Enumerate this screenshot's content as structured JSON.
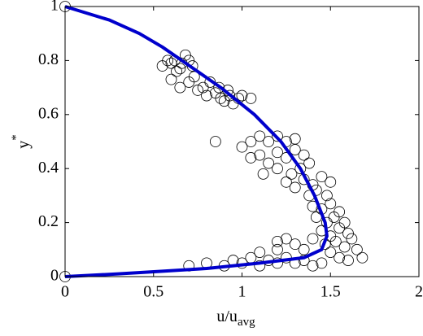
{
  "chart_data": {
    "type": "scatter",
    "xlabel": "u/u",
    "xlabel_sub": "avg",
    "ylabel": "y",
    "ylabel_sup": "*",
    "xlim": [
      0,
      2
    ],
    "xticks": [
      0,
      0.5,
      1,
      1.5,
      2
    ],
    "ylim": [
      0,
      1
    ],
    "yticks": [
      0,
      0.2,
      0.4,
      0.6,
      0.8,
      1
    ],
    "series": [
      {
        "kind": "markers",
        "color": "#000000",
        "x": [
          0,
          0,
          0.55,
          0.58,
          0.6,
          0.62,
          0.65,
          0.68,
          0.7,
          0.63,
          0.72,
          0.66,
          0.6,
          0.65,
          0.7,
          0.75,
          0.78,
          0.8,
          0.85,
          0.88,
          0.9,
          0.93,
          0.95,
          0.98,
          1.0,
          0.82,
          0.73,
          0.87,
          0.92,
          1.05,
          0.85,
          1.0,
          1.05,
          1.1,
          1.15,
          1.2,
          1.25,
          1.3,
          1.1,
          1.15,
          1.2,
          1.25,
          1.3,
          1.35,
          1.2,
          1.28,
          1.33,
          1.38,
          1.25,
          1.3,
          1.35,
          1.4,
          1.45,
          1.38,
          1.42,
          1.48,
          1.05,
          1.12,
          1.5,
          1.4,
          1.45,
          1.5,
          1.55,
          1.42,
          1.48,
          1.52,
          1.58,
          1.45,
          1.5,
          1.55,
          1.6,
          1.4,
          1.47,
          1.53,
          1.58,
          1.62,
          1.65,
          1.5,
          1.35,
          1.3,
          1.25,
          1.2,
          1.55,
          1.68,
          1.6,
          0.7,
          0.8,
          0.9,
          0.95,
          1.0,
          1.05,
          1.1,
          1.15,
          1.2,
          1.25,
          1.3,
          1.35,
          1.4,
          1.45,
          1.1,
          1.2
        ],
        "values": [
          0,
          1,
          0.78,
          0.8,
          0.79,
          0.8,
          0.77,
          0.82,
          0.8,
          0.76,
          0.78,
          0.79,
          0.73,
          0.7,
          0.72,
          0.69,
          0.7,
          0.67,
          0.68,
          0.66,
          0.65,
          0.67,
          0.64,
          0.66,
          0.67,
          0.72,
          0.74,
          0.7,
          0.69,
          0.66,
          0.5,
          0.48,
          0.5,
          0.52,
          0.5,
          0.52,
          0.5,
          0.51,
          0.45,
          0.42,
          0.46,
          0.44,
          0.47,
          0.45,
          0.4,
          0.38,
          0.4,
          0.42,
          0.35,
          0.33,
          0.36,
          0.34,
          0.37,
          0.3,
          0.32,
          0.3,
          0.44,
          0.38,
          0.35,
          0.26,
          0.25,
          0.27,
          0.24,
          0.22,
          0.2,
          0.22,
          0.2,
          0.17,
          0.15,
          0.18,
          0.16,
          0.14,
          0.12,
          0.13,
          0.11,
          0.14,
          0.1,
          0.09,
          0.1,
          0.12,
          0.14,
          0.1,
          0.07,
          0.07,
          0.06,
          0.04,
          0.05,
          0.04,
          0.06,
          0.05,
          0.07,
          0.04,
          0.06,
          0.05,
          0.07,
          0.05,
          0.06,
          0.04,
          0.05,
          0.09,
          0.13
        ]
      },
      {
        "kind": "line",
        "color": "#0000cc",
        "x": [
          0,
          0.25,
          0.42,
          0.55,
          0.66,
          0.88,
          1.07,
          1.22,
          1.33,
          1.41,
          1.47,
          1.48,
          1.45,
          1.35,
          1.1,
          0.8,
          0.55,
          0.3,
          0
        ],
        "values": [
          1,
          0.95,
          0.9,
          0.85,
          0.8,
          0.7,
          0.6,
          0.5,
          0.4,
          0.3,
          0.2,
          0.15,
          0.1,
          0.07,
          0.05,
          0.03,
          0.02,
          0.01,
          0
        ]
      }
    ]
  }
}
